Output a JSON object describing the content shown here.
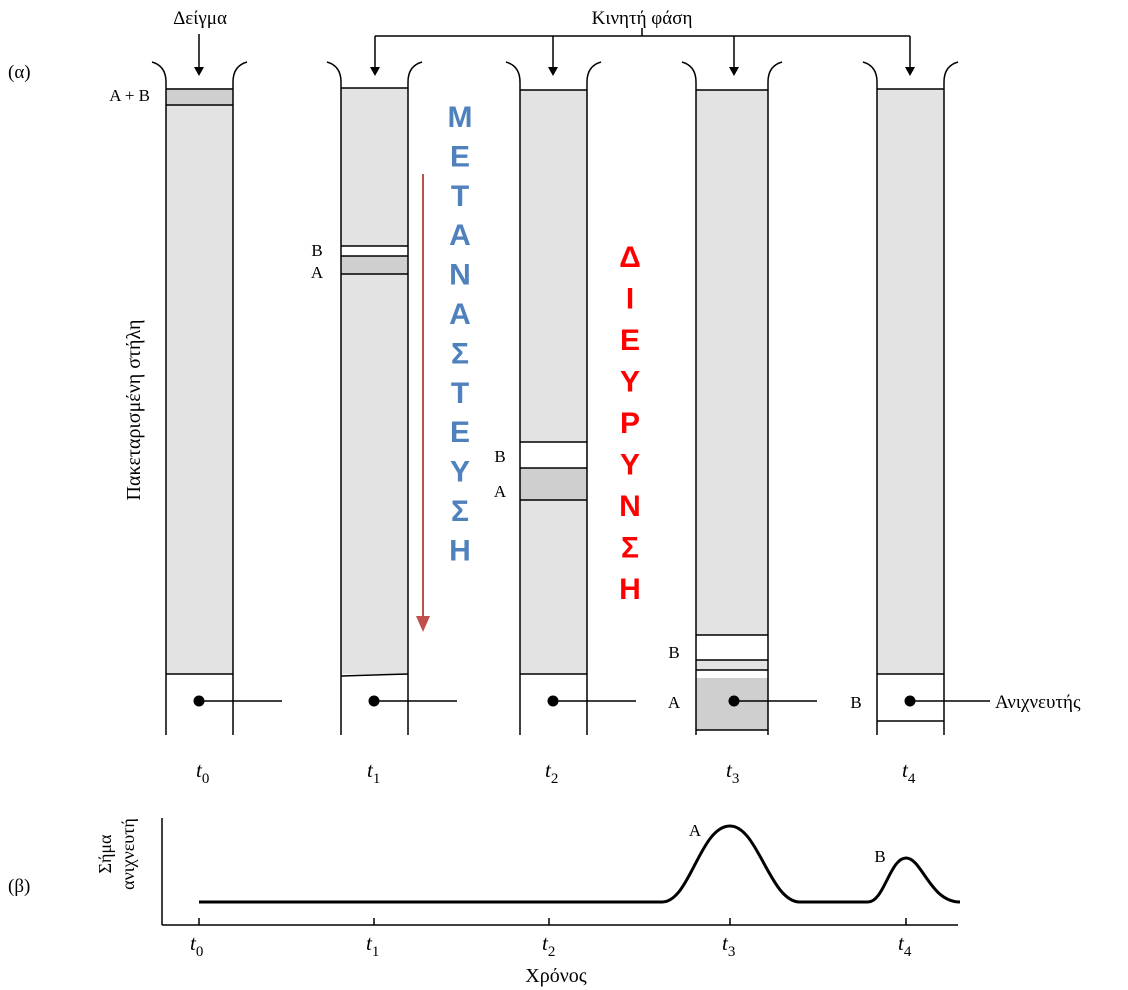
{
  "panel_a": {
    "label": "(α)",
    "sample_label": "Δείγμα",
    "mobile_phase_label": "Κινητή φάση",
    "column_label": "Πακεταρισμένη στήλη",
    "detector_label": "Ανιχνευτής",
    "band_ab_label": "Α + Β",
    "band_a_label": "Α",
    "band_b_label": "Β",
    "separation_word": [
      "Μ",
      "Ε",
      "Τ",
      "Α",
      "Ν",
      "Α",
      "Σ",
      "Τ",
      "Ε",
      "Υ",
      "Σ",
      "Η"
    ],
    "broadening_word": [
      "Δ",
      "Ι",
      "Ε",
      "Υ",
      "Ρ",
      "Υ",
      "Ν",
      "Σ",
      "Η"
    ],
    "times": [
      {
        "t": "t",
        "sub": "0"
      },
      {
        "t": "t",
        "sub": "1"
      },
      {
        "t": "t",
        "sub": "2"
      },
      {
        "t": "t",
        "sub": "3"
      },
      {
        "t": "t",
        "sub": "4"
      }
    ]
  },
  "panel_b": {
    "label": "(β)",
    "ylabel_line1": "Σήμα",
    "ylabel_line2": "ανιχνευτή",
    "xlabel": "Χρόνος",
    "peak_a_label": "Α",
    "peak_b_label": "Β",
    "ticks": [
      {
        "t": "t",
        "sub": "0"
      },
      {
        "t": "t",
        "sub": "1"
      },
      {
        "t": "t",
        "sub": "2"
      },
      {
        "t": "t",
        "sub": "3"
      },
      {
        "t": "t",
        "sub": "4"
      }
    ]
  },
  "colors": {
    "separation_text": "#4f81bd",
    "broadening_text": "#ff0000",
    "arrow": "#c0504d",
    "packing": "#e3e3e3",
    "band": "#cfcfcf"
  }
}
